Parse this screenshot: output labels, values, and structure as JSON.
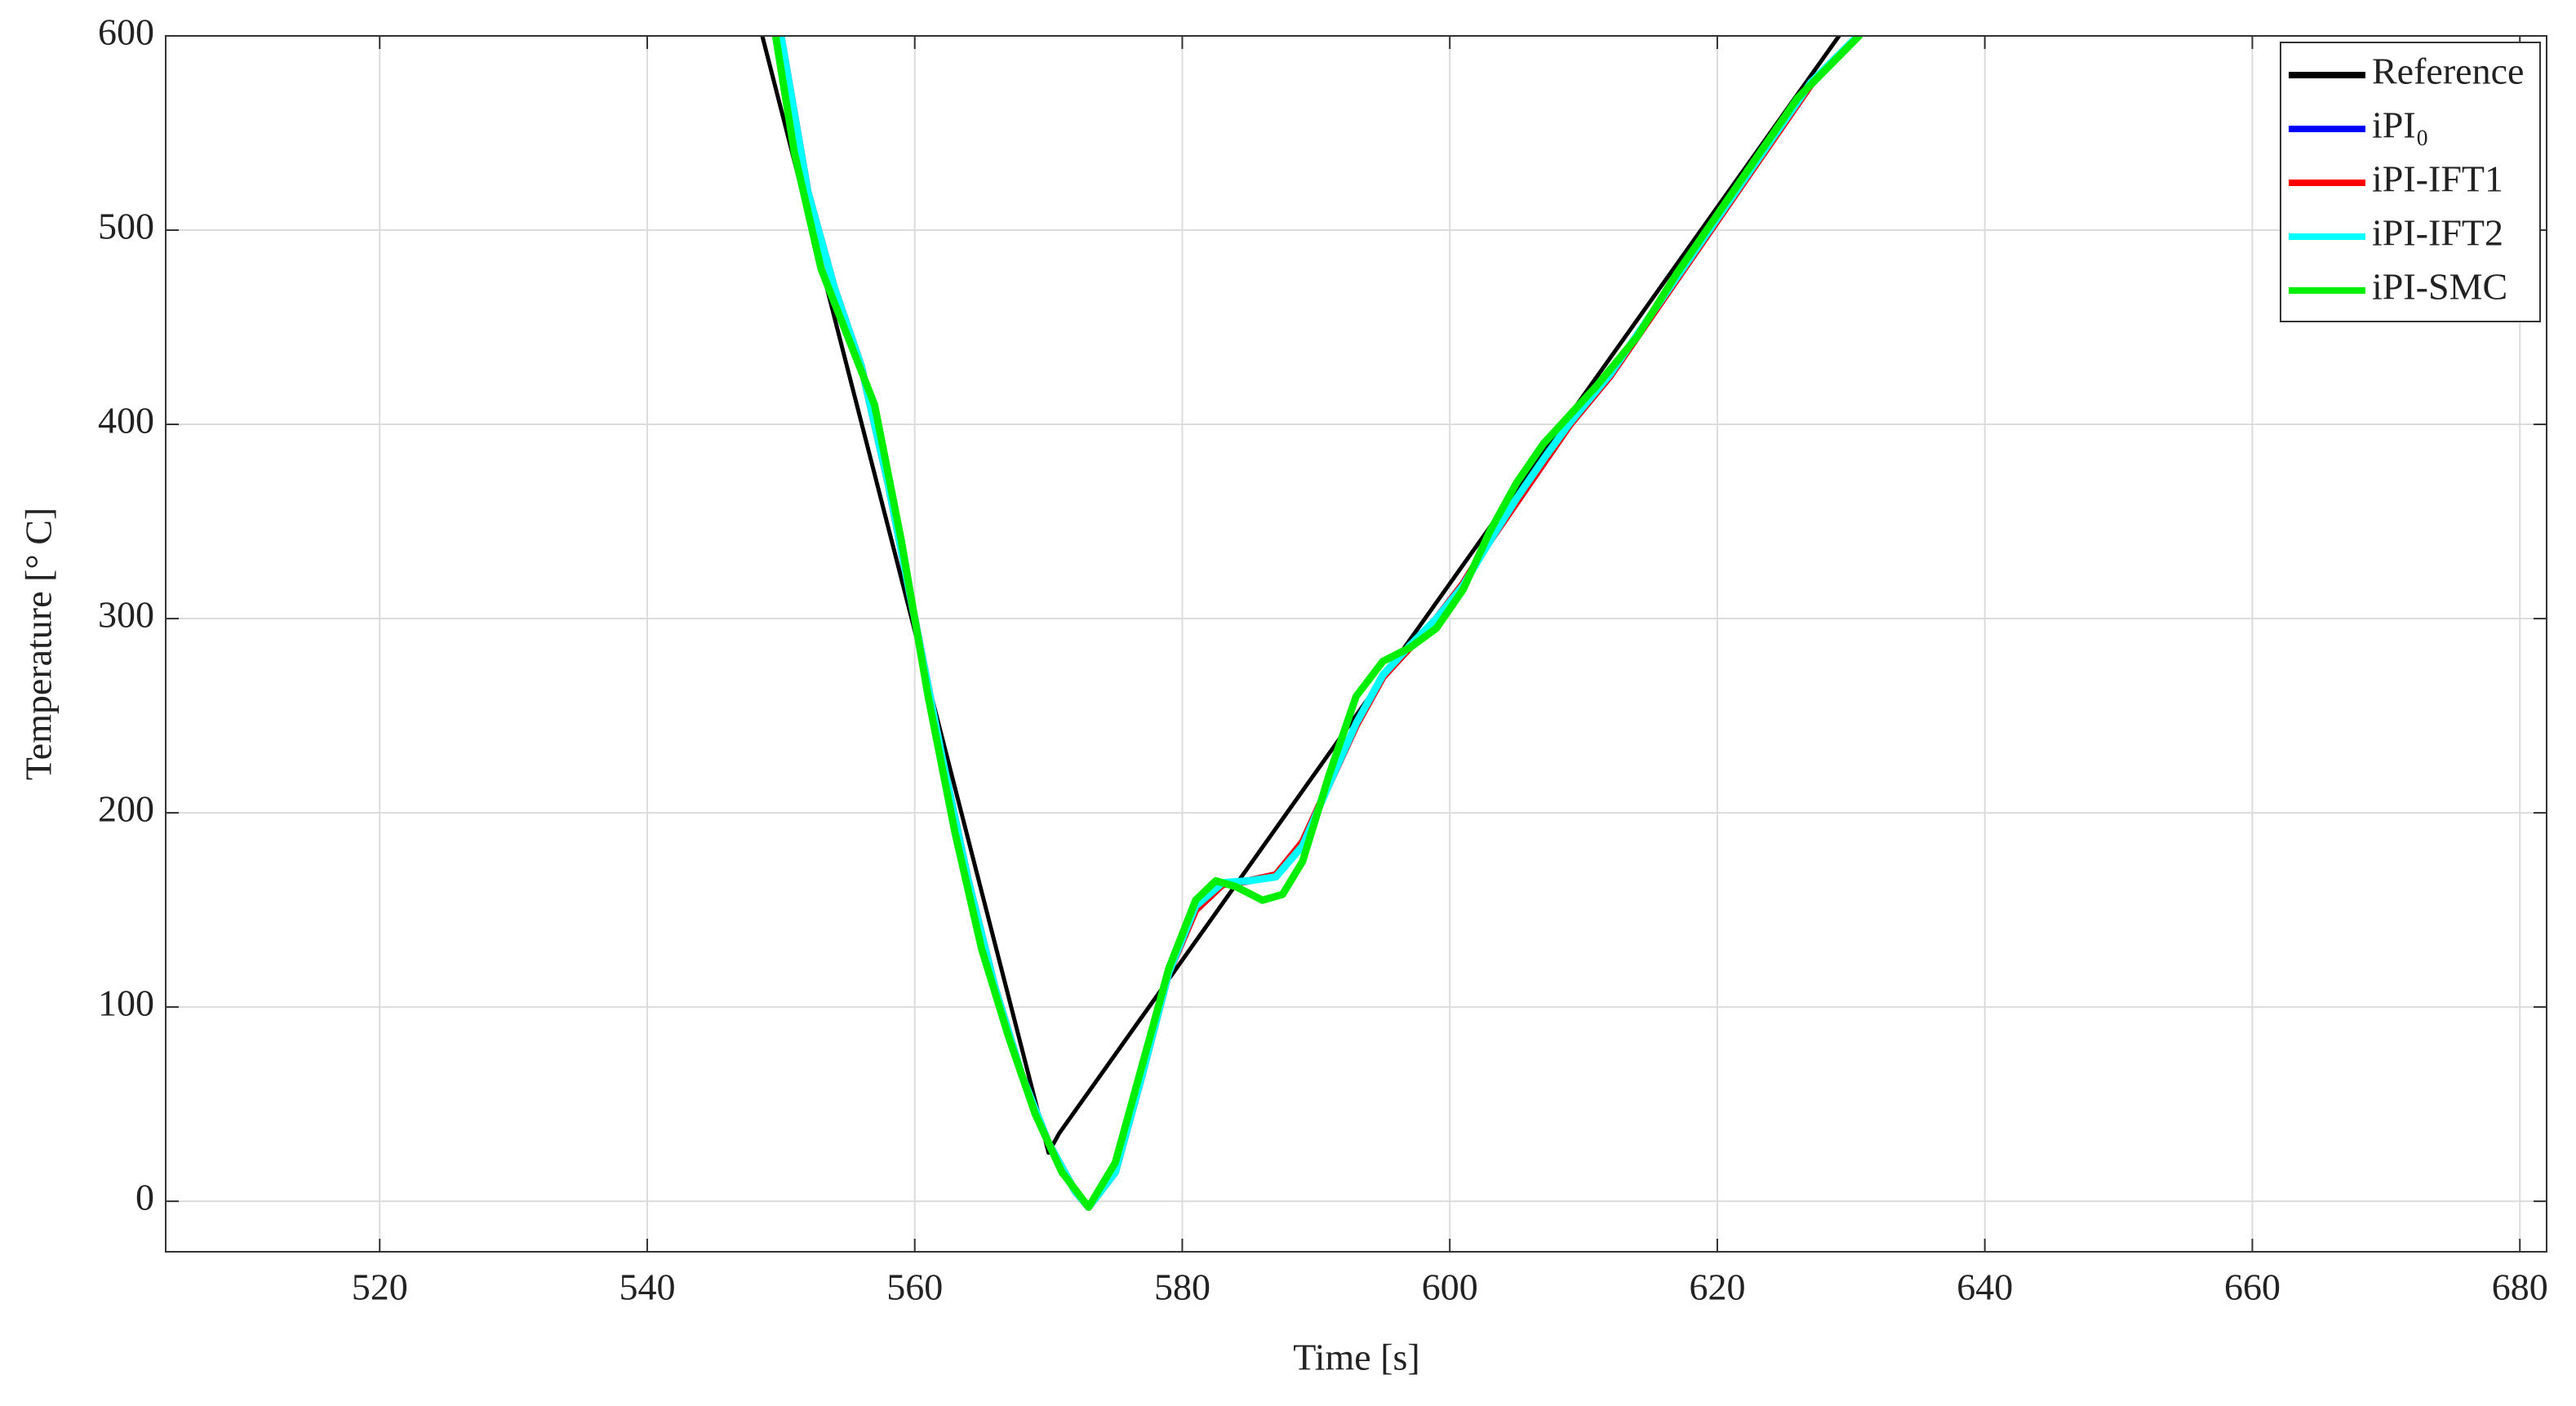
{
  "chart_data": {
    "type": "line",
    "x_label": "Time [s]",
    "y_label": "Temperature [° C]",
    "xlim": [
      504,
      682
    ],
    "ylim": [
      -26,
      600
    ],
    "xticks": [
      520,
      540,
      560,
      580,
      600,
      620,
      640,
      660,
      680
    ],
    "yticks": [
      0,
      100,
      200,
      300,
      400,
      500,
      600
    ],
    "grid": true,
    "legend_position": "upper-right",
    "series": [
      {
        "name": "Reference",
        "color": "#000000",
        "x": [
          548.6,
          570,
          570.8,
          629.1
        ],
        "values": [
          600,
          25,
          35,
          600
        ]
      },
      {
        "name": "iPI₀",
        "color": "#0000ff",
        "x": [
          550,
          552,
          554,
          556,
          558,
          560,
          562,
          564,
          566,
          568,
          570,
          572,
          573,
          575,
          577,
          579,
          581,
          583,
          585,
          587,
          589,
          591,
          593,
          595,
          597,
          599,
          601,
          603,
          605,
          607,
          609,
          612,
          615,
          618,
          621,
          624,
          627,
          630.5
        ],
        "values": [
          600,
          520,
          470,
          430,
          370,
          300,
          230,
          165,
          110,
          65,
          30,
          5,
          -3,
          15,
          65,
          118,
          150,
          163,
          165,
          168,
          185,
          215,
          245,
          270,
          285,
          300,
          318,
          340,
          360,
          380,
          400,
          425,
          455,
          485,
          515,
          545,
          575,
          600
        ]
      },
      {
        "name": "iPI-IFT1",
        "color": "#ff0000",
        "x": [
          550,
          552,
          554,
          556,
          558,
          560,
          562,
          564,
          566,
          568,
          570,
          572,
          573,
          575,
          577,
          579,
          581,
          583,
          585,
          587,
          589,
          591,
          593,
          595,
          597,
          599,
          601,
          603,
          605,
          607,
          609,
          612,
          615,
          618,
          621,
          624,
          627,
          630.5
        ],
        "values": [
          600,
          520,
          470,
          430,
          370,
          300,
          230,
          165,
          110,
          65,
          30,
          5,
          -3,
          15,
          65,
          118,
          150,
          163,
          165,
          168,
          185,
          215,
          245,
          270,
          285,
          300,
          318,
          340,
          360,
          380,
          400,
          425,
          455,
          485,
          515,
          545,
          575,
          600
        ]
      },
      {
        "name": "iPI-IFT2",
        "color": "#00ffff",
        "x": [
          550,
          552,
          554,
          556,
          558,
          560,
          562,
          564,
          566,
          568,
          570,
          572,
          573,
          575,
          577,
          579,
          581,
          583,
          585,
          587,
          589,
          591,
          593,
          595,
          597,
          599,
          601,
          603,
          605,
          607,
          609,
          612,
          615,
          618,
          621,
          624,
          627,
          630.5
        ],
        "values": [
          600,
          520,
          470,
          430,
          370,
          300,
          230,
          165,
          110,
          65,
          30,
          5,
          -3,
          15,
          65,
          118,
          152,
          164,
          165,
          167,
          183,
          215,
          246,
          271,
          286,
          300,
          317,
          340,
          362,
          382,
          401,
          426,
          456,
          486,
          516,
          546,
          576,
          600
        ]
      },
      {
        "name": "iPI-SMC",
        "color": "#00ee00",
        "x": [
          549.6,
          551,
          553,
          555,
          557,
          559,
          561,
          563,
          565,
          567,
          569,
          571,
          573,
          575,
          577,
          579,
          581,
          582.5,
          584,
          586,
          587.5,
          589,
          591,
          593,
          595,
          597,
          599,
          601,
          603,
          605,
          607,
          609,
          611,
          614,
          617,
          620,
          623,
          626,
          630.6
        ],
        "values": [
          600,
          540,
          480,
          445,
          410,
          340,
          260,
          190,
          130,
          85,
          45,
          15,
          -3,
          20,
          70,
          120,
          155,
          165,
          162,
          155,
          158,
          175,
          220,
          260,
          278,
          285,
          295,
          315,
          345,
          370,
          390,
          405,
          420,
          445,
          478,
          508,
          538,
          568,
          600
        ]
      }
    ]
  }
}
